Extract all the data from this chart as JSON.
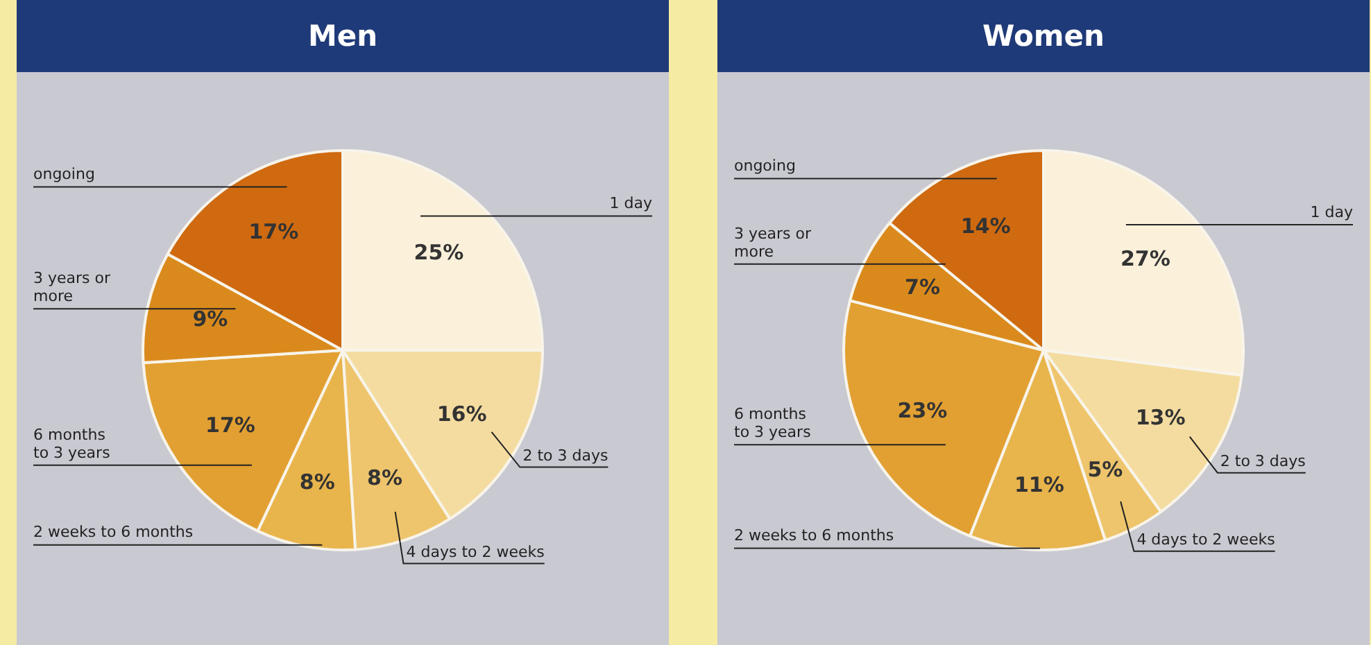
{
  "chart_data": [
    {
      "type": "pie",
      "title": "Men",
      "categories": [
        "1 day",
        "2 to 3 days",
        "4 days to 2 weeks",
        "2 weeks to 6 months",
        "6 months to 3 years",
        "3 years or more",
        "ongoing"
      ],
      "values": [
        25,
        16,
        8,
        8,
        17,
        9,
        17
      ],
      "value_labels": [
        "25%",
        "16%",
        "8%",
        "8%",
        "17%",
        "9%",
        "17%"
      ],
      "colors": [
        "#fbf1da",
        "#f4dca0",
        "#eec56c",
        "#e8b44c",
        "#e2a032",
        "#da8a1c",
        "#cf6a10"
      ],
      "legend": false
    },
    {
      "type": "pie",
      "title": "Women",
      "categories": [
        "1 day",
        "2 to 3 days",
        "4 days to 2 weeks",
        "2 weeks to 6 months",
        "6 months to 3 years",
        "3 years or more",
        "ongoing"
      ],
      "values": [
        27,
        13,
        5,
        11,
        23,
        7,
        14
      ],
      "value_labels": [
        "27%",
        "13%",
        "5%",
        "11%",
        "23%",
        "7%",
        "14%"
      ],
      "colors": [
        "#fbf1da",
        "#f4dca0",
        "#eec56c",
        "#e8b44c",
        "#e2a032",
        "#da8a1c",
        "#cf6a10"
      ],
      "legend": false
    }
  ]
}
